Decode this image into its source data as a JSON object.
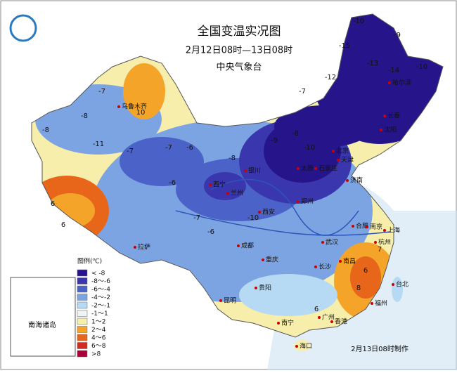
{
  "header": {
    "title": "全国变温实况图",
    "subtitle": "2月12日08时—13日08时",
    "issuer": "中央气象台"
  },
  "legend": {
    "title": "图例(℃)",
    "items": [
      {
        "label": "< -8",
        "color": "#26158a"
      },
      {
        "label": "-8～-6",
        "color": "#3a36ad"
      },
      {
        "label": "-6～-4",
        "color": "#4b63c8"
      },
      {
        "label": "-4～-2",
        "color": "#7da4e2"
      },
      {
        "label": "-2～-1",
        "color": "#b6daf3"
      },
      {
        "label": "-1～1",
        "color": "#eef3f5"
      },
      {
        "label": "1～2",
        "color": "#f6eeaa"
      },
      {
        "label": "2～4",
        "color": "#f5a42a"
      },
      {
        "label": "4～6",
        "color": "#e8661a"
      },
      {
        "label": "6～8",
        "color": "#d42a1f"
      },
      {
        "label": ">8",
        "color": "#b0003a"
      }
    ]
  },
  "inset_label": "南海诸岛",
  "footer": "2月13日08时制作",
  "cities": [
    "乌鲁木齐",
    "拉萨",
    "西宁",
    "兰州",
    "银川",
    "西安",
    "太原",
    "石家庄",
    "北京",
    "天津",
    "济南",
    "郑州",
    "成都",
    "重庆",
    "贵阳",
    "昆明",
    "南宁",
    "长沙",
    "武汉",
    "合肥",
    "南京",
    "上海",
    "杭州",
    "南昌",
    "福州",
    "广州",
    "香港",
    "海口",
    "台北",
    "沈阳",
    "长春",
    "哈尔滨"
  ],
  "temperature_labels": [
    -10,
    -15,
    -13,
    -9,
    -12,
    -7,
    -14,
    -10,
    -8,
    -7,
    10,
    -8,
    -6,
    -7,
    -8,
    -11,
    -7,
    -6,
    6,
    6,
    -8,
    -10,
    -9,
    -10,
    7,
    6,
    8,
    6,
    -6,
    -7
  ]
}
